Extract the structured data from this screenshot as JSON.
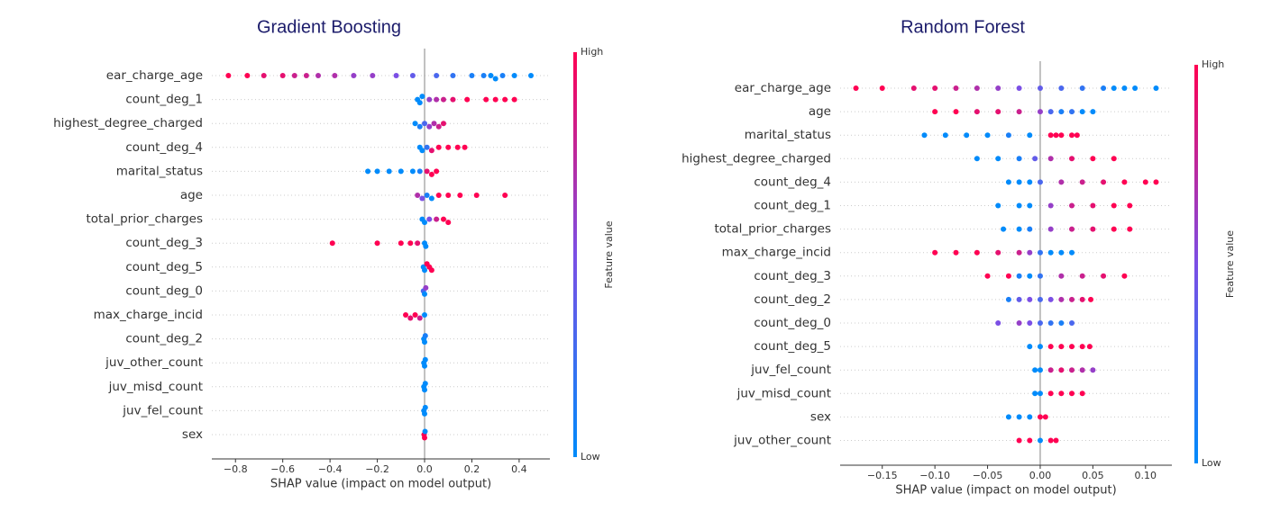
{
  "chart_data": [
    {
      "type": "beeswarm",
      "title": "Gradient Boosting",
      "xlabel": "SHAP value (impact on model output)",
      "colorbar_label": "Feature value",
      "colorbar_high": "High",
      "colorbar_low": "Low",
      "colormap": [
        "#008bfb",
        "#7b4fe5",
        "#ff0052"
      ],
      "xlim": [
        -0.9,
        0.53
      ],
      "xticks": [
        {
          "value": -0.8,
          "label": "−0.8"
        },
        {
          "value": -0.6,
          "label": "−0.6"
        },
        {
          "value": -0.4,
          "label": "−0.4"
        },
        {
          "value": -0.2,
          "label": "−0.2"
        },
        {
          "value": 0,
          "label": "0.0"
        },
        {
          "value": 0.2,
          "label": "0.2"
        },
        {
          "value": 0.4,
          "label": "0.4"
        }
      ],
      "series": [
        {
          "name": "ear_charge_age",
          "values": [
            -0.83,
            -0.75,
            -0.68,
            -0.6,
            -0.55,
            -0.5,
            -0.45,
            -0.38,
            -0.3,
            -0.22,
            -0.12,
            -0.05,
            0.05,
            0.12,
            0.2,
            0.25,
            0.28,
            0.3,
            0.33,
            0.38,
            0.45
          ],
          "feature_values": [
            1,
            1,
            0.9,
            0.9,
            0.8,
            0.8,
            0.7,
            0.7,
            0.6,
            0.6,
            0.5,
            0.4,
            0.3,
            0.2,
            0.1,
            0.1,
            0,
            0,
            0.1,
            0,
            0
          ]
        },
        {
          "name": "count_deg_1",
          "values": [
            -0.03,
            -0.02,
            -0.01,
            0.02,
            0.05,
            0.08,
            0.12,
            0.18,
            0.26,
            0.3,
            0.34,
            0.38
          ],
          "feature_values": [
            0,
            0,
            0,
            0.6,
            0.7,
            0.8,
            0.9,
            1,
            1,
            1,
            1,
            1
          ]
        },
        {
          "name": "highest_degree_charged",
          "values": [
            -0.04,
            -0.02,
            0,
            0.02,
            0.04,
            0.06,
            0.08
          ],
          "feature_values": [
            0,
            0.1,
            0.3,
            0.6,
            0.7,
            0.8,
            0.9
          ]
        },
        {
          "name": "count_deg_4",
          "values": [
            -0.02,
            -0.01,
            0.01,
            0.03,
            0.06,
            0.1,
            0.14,
            0.17
          ],
          "feature_values": [
            0,
            0,
            0.2,
            0.9,
            1,
            1,
            1,
            1
          ]
        },
        {
          "name": "marital_status",
          "values": [
            -0.24,
            -0.2,
            -0.15,
            -0.1,
            -0.05,
            -0.02,
            0.01,
            0.03,
            0.05
          ],
          "feature_values": [
            0,
            0,
            0,
            0,
            0,
            0.1,
            0.9,
            1,
            1
          ]
        },
        {
          "name": "age",
          "values": [
            -0.03,
            -0.01,
            0.01,
            0.03,
            0.06,
            0.1,
            0.15,
            0.22,
            0.34
          ],
          "feature_values": [
            0.7,
            0.5,
            0.1,
            0,
            1,
            1,
            1,
            1,
            1
          ]
        },
        {
          "name": "total_prior_charges",
          "values": [
            -0.01,
            0,
            0.02,
            0.05,
            0.08,
            0.1
          ],
          "feature_values": [
            0,
            0,
            0.5,
            0.8,
            1,
            1
          ]
        },
        {
          "name": "count_deg_3",
          "values": [
            -0.39,
            -0.2,
            -0.1,
            -0.06,
            -0.03,
            0,
            0.005
          ],
          "feature_values": [
            1,
            1,
            1,
            1,
            0.9,
            0,
            0
          ]
        },
        {
          "name": "count_deg_5",
          "values": [
            -0.005,
            0,
            0.01,
            0.02,
            0.03
          ],
          "feature_values": [
            0,
            0,
            1,
            1,
            1
          ]
        },
        {
          "name": "count_deg_0",
          "values": [
            -0.005,
            0,
            0.005
          ],
          "feature_values": [
            0.3,
            0,
            0.6
          ]
        },
        {
          "name": "max_charge_incid",
          "values": [
            -0.08,
            -0.06,
            -0.04,
            -0.02,
            0
          ],
          "feature_values": [
            1,
            0.9,
            1,
            0.8,
            0
          ]
        },
        {
          "name": "count_deg_2",
          "values": [
            -0.003,
            0,
            0.003
          ],
          "feature_values": [
            0,
            0,
            0.1
          ]
        },
        {
          "name": "juv_other_count",
          "values": [
            -0.003,
            0,
            0.003
          ],
          "feature_values": [
            0,
            0,
            0
          ]
        },
        {
          "name": "juv_misd_count",
          "values": [
            -0.003,
            0,
            0.003
          ],
          "feature_values": [
            0,
            0,
            0
          ]
        },
        {
          "name": "juv_fel_count",
          "values": [
            -0.003,
            0,
            0.003
          ],
          "feature_values": [
            0,
            0,
            0
          ]
        },
        {
          "name": "sex",
          "values": [
            -0.002,
            0,
            0.002
          ],
          "feature_values": [
            1,
            1,
            0
          ]
        }
      ]
    },
    {
      "type": "beeswarm",
      "title": "Random Forest",
      "xlabel": "SHAP value (impact on model output)",
      "colorbar_label": "Feature value",
      "colorbar_high": "High",
      "colorbar_low": "Low",
      "colormap": [
        "#008bfb",
        "#7b4fe5",
        "#ff0052"
      ],
      "xlim": [
        -0.19,
        0.125
      ],
      "xticks": [
        {
          "value": -0.15,
          "label": "−0.15"
        },
        {
          "value": -0.1,
          "label": "−0.10"
        },
        {
          "value": -0.05,
          "label": "−0.05"
        },
        {
          "value": 0,
          "label": "0.00"
        },
        {
          "value": 0.05,
          "label": "0.05"
        },
        {
          "value": 0.1,
          "label": "0.10"
        }
      ],
      "series": [
        {
          "name": "ear_charge_age",
          "values": [
            -0.175,
            -0.15,
            -0.12,
            -0.1,
            -0.08,
            -0.06,
            -0.04,
            -0.02,
            0,
            0.02,
            0.04,
            0.06,
            0.07,
            0.08,
            0.09,
            0.11
          ],
          "feature_values": [
            1,
            1,
            0.9,
            0.9,
            0.8,
            0.7,
            0.6,
            0.5,
            0.4,
            0.3,
            0.2,
            0.1,
            0,
            0,
            0,
            0
          ]
        },
        {
          "name": "age",
          "values": [
            -0.1,
            -0.08,
            -0.06,
            -0.04,
            -0.02,
            0,
            0.01,
            0.02,
            0.03,
            0.04,
            0.05
          ],
          "feature_values": [
            1,
            1,
            0.9,
            0.9,
            0.8,
            0.6,
            0.3,
            0.1,
            0.2,
            0,
            0
          ]
        },
        {
          "name": "marital_status",
          "values": [
            -0.11,
            -0.09,
            -0.07,
            -0.05,
            -0.03,
            -0.01,
            0.01,
            0.015,
            0.02,
            0.03,
            0.035
          ],
          "feature_values": [
            0,
            0,
            0,
            0,
            0.1,
            0,
            1,
            1,
            1,
            1,
            1
          ]
        },
        {
          "name": "highest_degree_charged",
          "values": [
            -0.06,
            -0.04,
            -0.02,
            -0.005,
            0.01,
            0.03,
            0.05,
            0.07
          ],
          "feature_values": [
            0,
            0,
            0.1,
            0.4,
            0.7,
            0.9,
            1,
            1
          ]
        },
        {
          "name": "count_deg_4",
          "values": [
            -0.03,
            -0.02,
            -0.01,
            0,
            0.02,
            0.04,
            0.06,
            0.08,
            0.1,
            0.11
          ],
          "feature_values": [
            0,
            0,
            0,
            0.3,
            0.7,
            0.8,
            0.9,
            1,
            1,
            1
          ]
        },
        {
          "name": "count_deg_1",
          "values": [
            -0.04,
            -0.02,
            -0.01,
            0.01,
            0.03,
            0.05,
            0.07,
            0.085
          ],
          "feature_values": [
            0,
            0,
            0,
            0.6,
            0.8,
            0.9,
            1,
            1
          ]
        },
        {
          "name": "total_prior_charges",
          "values": [
            -0.035,
            -0.02,
            -0.01,
            0.01,
            0.03,
            0.05,
            0.07,
            0.085
          ],
          "feature_values": [
            0,
            0,
            0.1,
            0.6,
            0.8,
            0.9,
            1,
            1
          ]
        },
        {
          "name": "max_charge_incid",
          "values": [
            -0.1,
            -0.08,
            -0.06,
            -0.04,
            -0.02,
            -0.01,
            0,
            0.01,
            0.02,
            0.03
          ],
          "feature_values": [
            1,
            1,
            1,
            0.9,
            0.8,
            0.6,
            0.2,
            0,
            0,
            0
          ]
        },
        {
          "name": "count_deg_3",
          "values": [
            -0.05,
            -0.03,
            -0.02,
            -0.01,
            0,
            0.02,
            0.04,
            0.06,
            0.08
          ],
          "feature_values": [
            1,
            1,
            0.1,
            0,
            0.2,
            0.7,
            0.8,
            0.9,
            1
          ]
        },
        {
          "name": "count_deg_2",
          "values": [
            -0.03,
            -0.02,
            -0.01,
            0,
            0.01,
            0.02,
            0.03,
            0.04,
            0.048
          ],
          "feature_values": [
            0.1,
            0.4,
            0.5,
            0.3,
            0.5,
            0.7,
            0.8,
            0.9,
            1
          ]
        },
        {
          "name": "count_deg_0",
          "values": [
            -0.04,
            -0.02,
            -0.01,
            0,
            0.01,
            0.02,
            0.03
          ],
          "feature_values": [
            0.5,
            0.6,
            0.5,
            0.3,
            0.2,
            0.1,
            0.3
          ]
        },
        {
          "name": "count_deg_5",
          "values": [
            -0.01,
            0,
            0.01,
            0.02,
            0.03,
            0.04,
            0.047
          ],
          "feature_values": [
            0,
            0,
            1,
            1,
            1,
            1,
            1
          ]
        },
        {
          "name": "juv_fel_count",
          "values": [
            -0.005,
            0,
            0.01,
            0.02,
            0.03,
            0.04,
            0.05
          ],
          "feature_values": [
            0,
            0,
            0.8,
            0.9,
            0.8,
            0.7,
            0.6
          ]
        },
        {
          "name": "juv_misd_count",
          "values": [
            -0.005,
            0,
            0.01,
            0.02,
            0.03,
            0.04
          ],
          "feature_values": [
            0,
            0,
            1,
            1,
            1,
            1
          ]
        },
        {
          "name": "sex",
          "values": [
            -0.03,
            -0.02,
            -0.01,
            0,
            0.005
          ],
          "feature_values": [
            0,
            0,
            0,
            1,
            1
          ]
        },
        {
          "name": "juv_other_count",
          "values": [
            -0.02,
            -0.01,
            0,
            0.01,
            0.015
          ],
          "feature_values": [
            1,
            1,
            0,
            1,
            1
          ]
        }
      ]
    }
  ]
}
